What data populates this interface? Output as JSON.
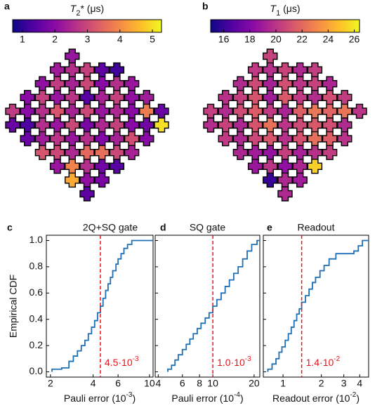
{
  "chart_data": [
    {
      "type": "qubit-map",
      "panel": "a",
      "colorbar_label": {
        "text": "T",
        "sub": "2",
        "end": "* (μs)"
      },
      "clim": [
        0.7,
        5.28
      ],
      "cticks": [
        1,
        2,
        3,
        4,
        5
      ],
      "colormap": [
        "#0d0887",
        "#5302a3",
        "#8b0aa5",
        "#b83289",
        "#db5c68",
        "#f48849",
        "#febd2a",
        "#f0f921"
      ],
      "values": [
        [
          null,
          null,
          null,
          null,
          2.2,
          null,
          null,
          null,
          null,
          null,
          null
        ],
        [
          null,
          null,
          null,
          2.3,
          2.6,
          2.9,
          1.5,
          1.2,
          null,
          null,
          null
        ],
        [
          null,
          null,
          2.1,
          2.8,
          2.4,
          3.0,
          2.0,
          2.6,
          2.2,
          null,
          null
        ],
        [
          null,
          2.0,
          2.9,
          2.2,
          2.7,
          1.4,
          2.4,
          2.9,
          2.1,
          2.3,
          null
        ],
        [
          2.8,
          2.0,
          2.6,
          3.2,
          2.4,
          3.0,
          2.2,
          2.5,
          2.0,
          3.8,
          1.6
        ],
        [
          1.6,
          1.3,
          2.6,
          2.2,
          3.0,
          1.8,
          2.5,
          2.9,
          2.0,
          1.7,
          5.0
        ],
        [
          null,
          1.6,
          2.3,
          2.7,
          2.2,
          2.6,
          1.9,
          2.4,
          3.1,
          2.0,
          null
        ],
        [
          null,
          null,
          3.2,
          3.0,
          2.5,
          3.5,
          3.6,
          3.0,
          2.4,
          null,
          null
        ],
        [
          null,
          null,
          null,
          2.2,
          3.9,
          2.6,
          1.7,
          1.4,
          null,
          null,
          null
        ],
        [
          null,
          null,
          null,
          null,
          4.4,
          2.1,
          1.8,
          null,
          null,
          null,
          null
        ],
        [
          null,
          null,
          null,
          null,
          null,
          1.5,
          null,
          null,
          null,
          null,
          null
        ]
      ]
    },
    {
      "type": "qubit-map",
      "panel": "b",
      "colorbar_label": {
        "text": "T",
        "sub": "1",
        "end": " (μs)"
      },
      "clim": [
        15.0,
        26.4
      ],
      "cticks": [
        16,
        18,
        20,
        22,
        24,
        26
      ],
      "colormap": [
        "#0d0887",
        "#5302a3",
        "#8b0aa5",
        "#b83289",
        "#db5c68",
        "#f48849",
        "#febd2a",
        "#f0f921"
      ],
      "values": [
        [
          null,
          null,
          null,
          null,
          20.5,
          null,
          null,
          null,
          null,
          null,
          null
        ],
        [
          null,
          null,
          null,
          20.2,
          19.8,
          20.6,
          19.5,
          20.4,
          null,
          null,
          null
        ],
        [
          null,
          null,
          19.6,
          20.8,
          19.2,
          21.0,
          20.0,
          20.5,
          19.4,
          null,
          null
        ],
        [
          null,
          19.8,
          20.4,
          21.2,
          19.0,
          21.4,
          20.2,
          19.7,
          21.0,
          20.3,
          null
        ],
        [
          20.4,
          19.6,
          20.9,
          21.5,
          20.2,
          19.3,
          21.6,
          22.5,
          21.8,
          22.4,
          20.0
        ],
        [
          19.7,
          20.5,
          19.4,
          21.2,
          22.3,
          20.0,
          20.8,
          21.4,
          21.0,
          19.6,
          null
        ],
        [
          null,
          20.2,
          19.5,
          20.7,
          21.3,
          19.8,
          21.1,
          22.2,
          21.6,
          19.9,
          null
        ],
        [
          null,
          null,
          19.4,
          19.0,
          18.6,
          20.4,
          19.2,
          19.8,
          20.3,
          null,
          null
        ],
        [
          null,
          null,
          null,
          18.8,
          20.0,
          18.5,
          19.4,
          25.3,
          null,
          null,
          null
        ],
        [
          null,
          null,
          null,
          null,
          16.0,
          19.5,
          19.0,
          null,
          null,
          null,
          null
        ],
        [
          null,
          null,
          null,
          null,
          null,
          19.5,
          null,
          null,
          null,
          null,
          null
        ]
      ]
    },
    {
      "type": "step",
      "panel": "c",
      "title": "2Q+SQ gate",
      "ylabel": "Empirical CDF",
      "color": "#1f6fb4",
      "xlabel": {
        "text": "Pauli error (10",
        "sup": "-3",
        "end": ")"
      },
      "log_x": true,
      "xlim": [
        1.87,
        10.6
      ],
      "xticks": [
        2,
        4,
        6,
        10
      ],
      "ylim": [
        -0.04,
        1.04
      ],
      "yticks": [
        {
          "value": 0,
          "label": "0.0"
        },
        0.2,
        0.4,
        0.6,
        0.8,
        {
          "value": 1,
          "label": "1.0"
        }
      ],
      "vline": {
        "value": 4.5,
        "text": "4.5·10",
        "sup": "-3",
        "color": "#e8141c"
      },
      "x": [
        2.05,
        2.4,
        2.7,
        2.9,
        3.1,
        3.3,
        3.5,
        3.7,
        3.9,
        4.1,
        4.3,
        4.5,
        4.7,
        4.9,
        5.1,
        5.3,
        5.5,
        5.8,
        6.0,
        6.3,
        6.6,
        7.0,
        7.5
      ],
      "values": [
        0.02,
        0.03,
        0.08,
        0.12,
        0.16,
        0.2,
        0.24,
        0.29,
        0.34,
        0.39,
        0.45,
        0.5,
        0.56,
        0.62,
        0.67,
        0.72,
        0.77,
        0.82,
        0.86,
        0.9,
        0.94,
        0.97,
        1.0
      ]
    },
    {
      "type": "step",
      "panel": "d",
      "title": "SQ gate",
      "color": "#1f6fb4",
      "xlabel": {
        "text": "Pauli error (10",
        "sup": "-4",
        "end": ")"
      },
      "log_x": true,
      "xlim": [
        3.8,
        22
      ],
      "xticks": [
        4,
        6,
        8,
        10,
        20
      ],
      "vline": {
        "value": 10,
        "text": "1.0·10",
        "sup": "-3",
        "color": "#e8141c"
      },
      "x": [
        4.7,
        5.0,
        5.3,
        5.6,
        6.0,
        6.4,
        6.8,
        7.2,
        7.7,
        8.2,
        8.8,
        9.4,
        10.0,
        10.7,
        11.5,
        12.3,
        13.2,
        14.2,
        15.3,
        16.5,
        17.8,
        19.2,
        21.0
      ],
      "values": [
        0.02,
        0.05,
        0.09,
        0.13,
        0.17,
        0.21,
        0.25,
        0.29,
        0.33,
        0.37,
        0.41,
        0.45,
        0.5,
        0.55,
        0.6,
        0.65,
        0.7,
        0.75,
        0.8,
        0.86,
        0.92,
        0.97,
        1.0
      ]
    },
    {
      "type": "step",
      "panel": "e",
      "title": "Readout",
      "color": "#1f6fb4",
      "xlabel": {
        "text": "Readout error (10",
        "sup": "-2",
        "end": ")"
      },
      "log_x": true,
      "xlim": [
        0.7,
        4.7
      ],
      "xticks": [
        1,
        2,
        3,
        4
      ],
      "vline": {
        "value": 1.4,
        "text": "1.4·10",
        "sup": "-2",
        "color": "#e8141c"
      },
      "x": [
        0.76,
        0.82,
        0.88,
        0.93,
        0.98,
        1.04,
        1.1,
        1.16,
        1.22,
        1.28,
        1.34,
        1.4,
        1.5,
        1.6,
        1.7,
        1.8,
        1.95,
        2.1,
        2.3,
        2.6,
        3.6,
        3.9,
        4.2
      ],
      "values": [
        0.02,
        0.06,
        0.1,
        0.15,
        0.19,
        0.24,
        0.29,
        0.34,
        0.39,
        0.44,
        0.48,
        0.53,
        0.58,
        0.63,
        0.68,
        0.72,
        0.77,
        0.81,
        0.86,
        0.9,
        0.92,
        0.96,
        1.0
      ]
    }
  ]
}
